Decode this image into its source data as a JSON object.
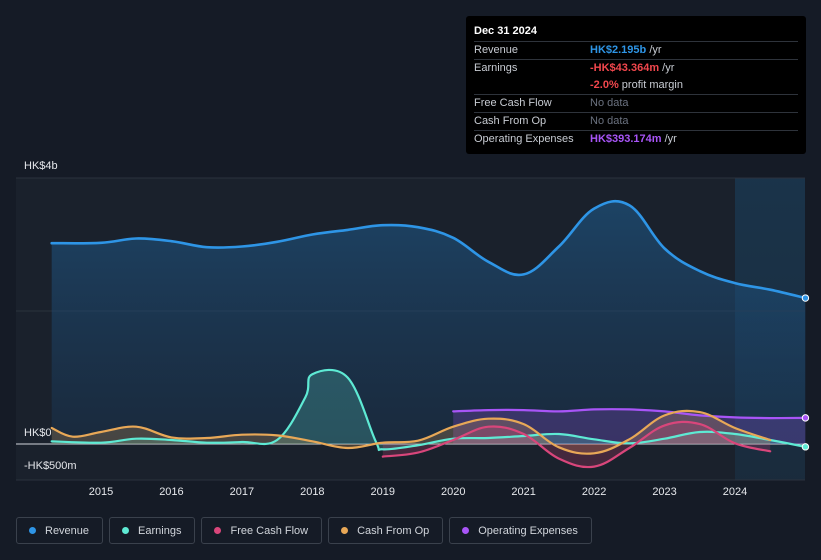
{
  "tooltip": {
    "date": "Dec 31 2024",
    "rows": {
      "revenue": {
        "label": "Revenue",
        "value": "HK$2.195b",
        "unit": " /yr"
      },
      "earnings": {
        "label": "Earnings",
        "value": "-HK$43.364m",
        "unit": " /yr"
      },
      "margin": {
        "value": "-2.0%",
        "unit": " profit margin"
      },
      "fcf": {
        "label": "Free Cash Flow",
        "value": "No data"
      },
      "cfo": {
        "label": "Cash From Op",
        "value": "No data"
      },
      "opex": {
        "label": "Operating Expenses",
        "value": "HK$393.174m",
        "unit": " /yr"
      }
    }
  },
  "legend": [
    {
      "label": "Revenue",
      "color": "#2e95e6"
    },
    {
      "label": "Earnings",
      "color": "#5eead4"
    },
    {
      "label": "Free Cash Flow",
      "color": "#d9467b"
    },
    {
      "label": "Cash From Op",
      "color": "#e8a857"
    },
    {
      "label": "Operating Expenses",
      "color": "#a855f7"
    }
  ],
  "chart_data": {
    "type": "line",
    "title": "",
    "xlabel": "",
    "ylabel": "",
    "unit": "HK$ millions",
    "y_tick_labels": [
      "HK$4b",
      "HK$0",
      "-HK$500m"
    ],
    "ylim": [
      -500,
      4000
    ],
    "xlim": [
      2014.3,
      2025.0
    ],
    "x_tick_labels": [
      "2015",
      "2016",
      "2017",
      "2018",
      "2019",
      "2020",
      "2021",
      "2022",
      "2023",
      "2024"
    ],
    "x_ticks": [
      2015,
      2016,
      2017,
      2018,
      2019,
      2020,
      2021,
      2022,
      2023,
      2024
    ],
    "highlight_start": 2024.0,
    "series": [
      {
        "name": "Revenue",
        "color": "#2e95e6",
        "fill": true,
        "points": [
          [
            2014.3,
            3020
          ],
          [
            2015.0,
            3025
          ],
          [
            2015.5,
            3090
          ],
          [
            2016.0,
            3050
          ],
          [
            2016.5,
            2960
          ],
          [
            2017.0,
            2970
          ],
          [
            2017.5,
            3040
          ],
          [
            2018.0,
            3150
          ],
          [
            2018.5,
            3220
          ],
          [
            2019.0,
            3290
          ],
          [
            2019.5,
            3260
          ],
          [
            2020.0,
            3100
          ],
          [
            2020.5,
            2740
          ],
          [
            2021.0,
            2550
          ],
          [
            2021.5,
            2970
          ],
          [
            2022.0,
            3540
          ],
          [
            2022.5,
            3590
          ],
          [
            2023.0,
            2940
          ],
          [
            2023.5,
            2600
          ],
          [
            2024.0,
            2420
          ],
          [
            2024.5,
            2320
          ],
          [
            2025.0,
            2195
          ]
        ]
      },
      {
        "name": "Earnings",
        "color": "#5eead4",
        "fill": true,
        "points": [
          [
            2014.3,
            40
          ],
          [
            2015.0,
            20
          ],
          [
            2015.5,
            80
          ],
          [
            2016.0,
            60
          ],
          [
            2016.5,
            20
          ],
          [
            2017.0,
            30
          ],
          [
            2017.5,
            60
          ],
          [
            2017.9,
            700
          ],
          [
            2018.0,
            1050
          ],
          [
            2018.5,
            1000
          ],
          [
            2018.9,
            40
          ],
          [
            2019.0,
            -80
          ],
          [
            2019.5,
            -20
          ],
          [
            2020.0,
            80
          ],
          [
            2020.5,
            90
          ],
          [
            2021.0,
            120
          ],
          [
            2021.5,
            150
          ],
          [
            2022.0,
            70
          ],
          [
            2022.5,
            10
          ],
          [
            2023.0,
            80
          ],
          [
            2023.5,
            180
          ],
          [
            2024.0,
            150
          ],
          [
            2024.5,
            60
          ],
          [
            2025.0,
            -43
          ]
        ]
      },
      {
        "name": "Free Cash Flow",
        "color": "#d9467b",
        "fill": true,
        "points": [
          [
            2019.0,
            -190
          ],
          [
            2019.5,
            -130
          ],
          [
            2020.0,
            60
          ],
          [
            2020.5,
            260
          ],
          [
            2021.0,
            150
          ],
          [
            2021.5,
            -220
          ],
          [
            2022.0,
            -340
          ],
          [
            2022.5,
            -60
          ],
          [
            2023.0,
            280
          ],
          [
            2023.5,
            300
          ],
          [
            2024.0,
            10
          ],
          [
            2024.5,
            -110
          ]
        ]
      },
      {
        "name": "Cash From Op",
        "color": "#e8a857",
        "fill": true,
        "points": [
          [
            2014.3,
            240
          ],
          [
            2014.6,
            110
          ],
          [
            2015.0,
            180
          ],
          [
            2015.5,
            260
          ],
          [
            2016.0,
            100
          ],
          [
            2016.5,
            90
          ],
          [
            2017.0,
            140
          ],
          [
            2017.5,
            130
          ],
          [
            2018.0,
            40
          ],
          [
            2018.5,
            -60
          ],
          [
            2019.0,
            20
          ],
          [
            2019.5,
            50
          ],
          [
            2020.0,
            260
          ],
          [
            2020.5,
            380
          ],
          [
            2021.0,
            300
          ],
          [
            2021.5,
            -50
          ],
          [
            2022.0,
            -140
          ],
          [
            2022.5,
            70
          ],
          [
            2023.0,
            430
          ],
          [
            2023.5,
            480
          ],
          [
            2024.0,
            240
          ],
          [
            2024.5,
            60
          ]
        ]
      },
      {
        "name": "Operating Expenses",
        "color": "#a855f7",
        "fill": true,
        "points": [
          [
            2020.0,
            490
          ],
          [
            2020.5,
            510
          ],
          [
            2021.0,
            510
          ],
          [
            2021.5,
            490
          ],
          [
            2022.0,
            520
          ],
          [
            2022.5,
            520
          ],
          [
            2023.0,
            490
          ],
          [
            2023.5,
            430
          ],
          [
            2024.0,
            400
          ],
          [
            2024.5,
            390
          ],
          [
            2025.0,
            393
          ]
        ]
      }
    ]
  }
}
